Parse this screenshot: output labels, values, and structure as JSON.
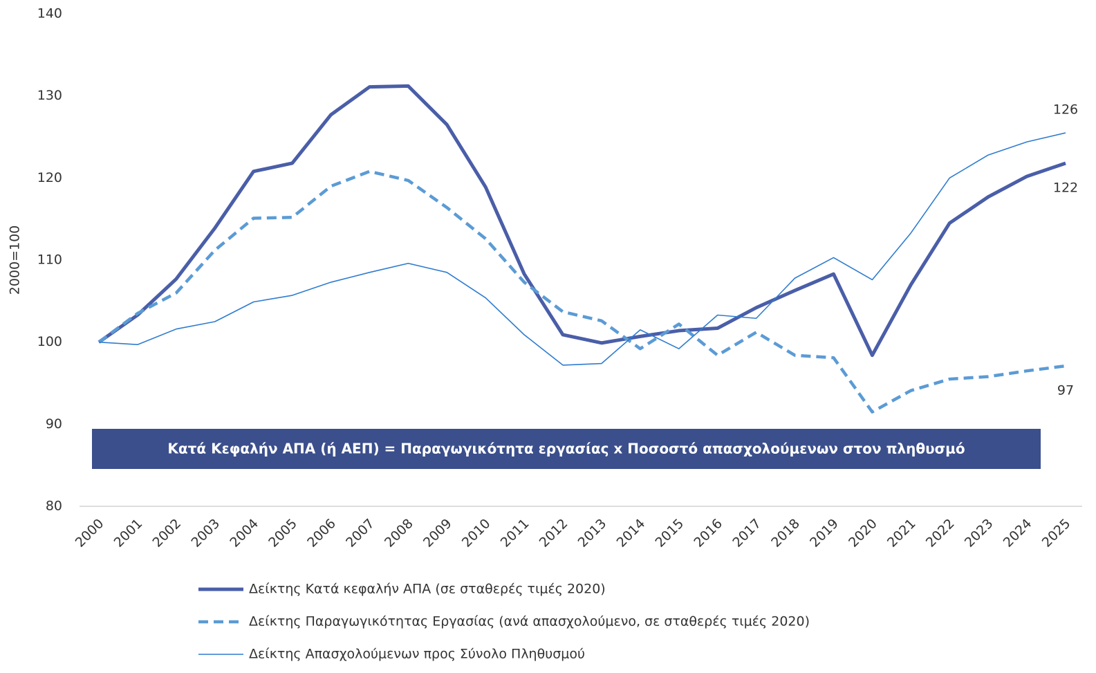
{
  "chart_data": {
    "type": "line",
    "y_axis_label": "2000=100",
    "annotation": "Κατά Κεφαλήν ΑΠΑ (ή ΑΕΠ) = Παραγωγικότητα εργασίας x Ποσοστό απασχολούμενων στον πληθυσμό",
    "categories": [
      "2000",
      "2001",
      "2002",
      "2003",
      "2004",
      "2005",
      "2006",
      "2007",
      "2008",
      "2009",
      "2010",
      "2011",
      "2012",
      "2013",
      "2014",
      "2015",
      "2016",
      "2017",
      "2018",
      "2019",
      "2020",
      "2021",
      "2022",
      "2023",
      "2024",
      "2025"
    ],
    "series": [
      {
        "name": "Δείκτης Κατά κεφαλήν ΑΠΑ (σε σταθερές τιμές 2020)",
        "color": "#4a5ea8",
        "line_style": "solid",
        "values": [
          100,
          103.3,
          107.7,
          113.9,
          120.8,
          121.8,
          127.7,
          131.1,
          131.2,
          126.5,
          118.9,
          108.3,
          100.9,
          99.9,
          100.7,
          101.4,
          101.7,
          104.2,
          106.3,
          108.3,
          98.4,
          107.0,
          114.5,
          117.7,
          120.2,
          121.8
        ],
        "value_labels": [
          null,
          null,
          null,
          null,
          null,
          null,
          null,
          null,
          null,
          null,
          null,
          null,
          null,
          null,
          null,
          null,
          null,
          null,
          null,
          null,
          null,
          null,
          null,
          null,
          null,
          "122"
        ]
      },
      {
        "name": "Δείκτης Παραγωγικότητας Εργασίας (ανά απασχολούμενο, σε σταθερές τιμές 2020)",
        "color": "#5b9bd5",
        "line_style": "dashed",
        "values": [
          100,
          103.5,
          106.0,
          111.2,
          115.1,
          115.2,
          119.0,
          120.8,
          119.7,
          116.4,
          112.6,
          107.3,
          103.7,
          102.6,
          99.2,
          102.2,
          98.4,
          101.2,
          98.4,
          98.1,
          91.5,
          94.1,
          95.5,
          95.8,
          96.5,
          97.1
        ],
        "value_labels": [
          null,
          null,
          null,
          null,
          null,
          null,
          null,
          null,
          null,
          null,
          null,
          null,
          null,
          null,
          null,
          null,
          null,
          null,
          null,
          null,
          null,
          null,
          null,
          null,
          null,
          "97"
        ]
      },
      {
        "name": "Δείκτης Απασχολούμενων προς Σύνολο Πληθυσμού",
        "color": "#2e7cd0",
        "line_style": "solid",
        "values": [
          100,
          99.7,
          101.6,
          102.5,
          104.9,
          105.7,
          107.3,
          108.5,
          109.6,
          108.5,
          105.4,
          100.9,
          97.2,
          97.4,
          101.5,
          99.2,
          103.3,
          102.9,
          107.8,
          110.3,
          107.6,
          113.3,
          120.0,
          122.8,
          124.4,
          125.5
        ],
        "value_labels": [
          null,
          null,
          null,
          null,
          null,
          null,
          null,
          null,
          null,
          null,
          null,
          null,
          null,
          null,
          null,
          null,
          null,
          null,
          null,
          null,
          null,
          null,
          null,
          null,
          null,
          "126"
        ]
      }
    ],
    "ylim": [
      80,
      140
    ],
    "yticks": [
      80,
      90,
      100,
      110,
      120,
      130,
      140
    ],
    "grid": false
  }
}
